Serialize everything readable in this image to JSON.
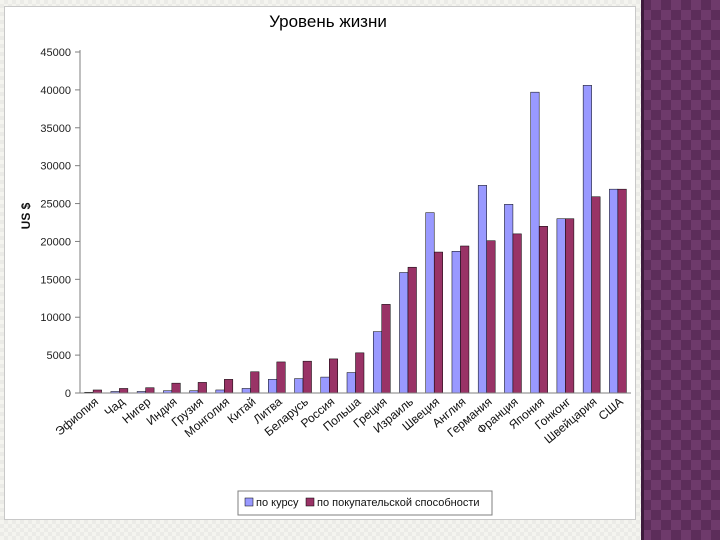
{
  "chart_data": {
    "type": "bar",
    "title": "Уровень жизни",
    "ylabel": "US $",
    "xlabel": "",
    "ylim": [
      0,
      45000
    ],
    "yticks": [
      "0",
      "5000",
      "10000",
      "15000",
      "20000",
      "25000",
      "30000",
      "35000",
      "40000",
      "45000"
    ],
    "grid": false,
    "legend_position": "bottom",
    "categories": [
      "Эфиопия",
      "Чад",
      "Нигер",
      "Индия",
      "Грузия",
      "Монголия",
      "Китай",
      "Литва",
      "Беларусь",
      "Россия",
      "Польша",
      "Греция",
      "Израиль",
      "Швеция",
      "Англия",
      "Германия",
      "Франция",
      "Япония",
      "Гонконг",
      "Швейцария",
      "США"
    ],
    "series": [
      {
        "name": "по курсу",
        "color": "#9999ff",
        "values": [
          100,
          200,
          200,
          300,
          300,
          400,
          600,
          1800,
          1900,
          2100,
          2700,
          8100,
          15900,
          23800,
          18700,
          27400,
          24900,
          39700,
          23000,
          40600,
          26900
        ]
      },
      {
        "name": "по покупательской способности",
        "color": "#993366",
        "values": [
          400,
          600,
          700,
          1300,
          1400,
          1800,
          2800,
          4100,
          4200,
          4500,
          5300,
          11700,
          16600,
          18600,
          19400,
          20100,
          21000,
          22000,
          23000,
          25900,
          26900
        ]
      }
    ]
  }
}
